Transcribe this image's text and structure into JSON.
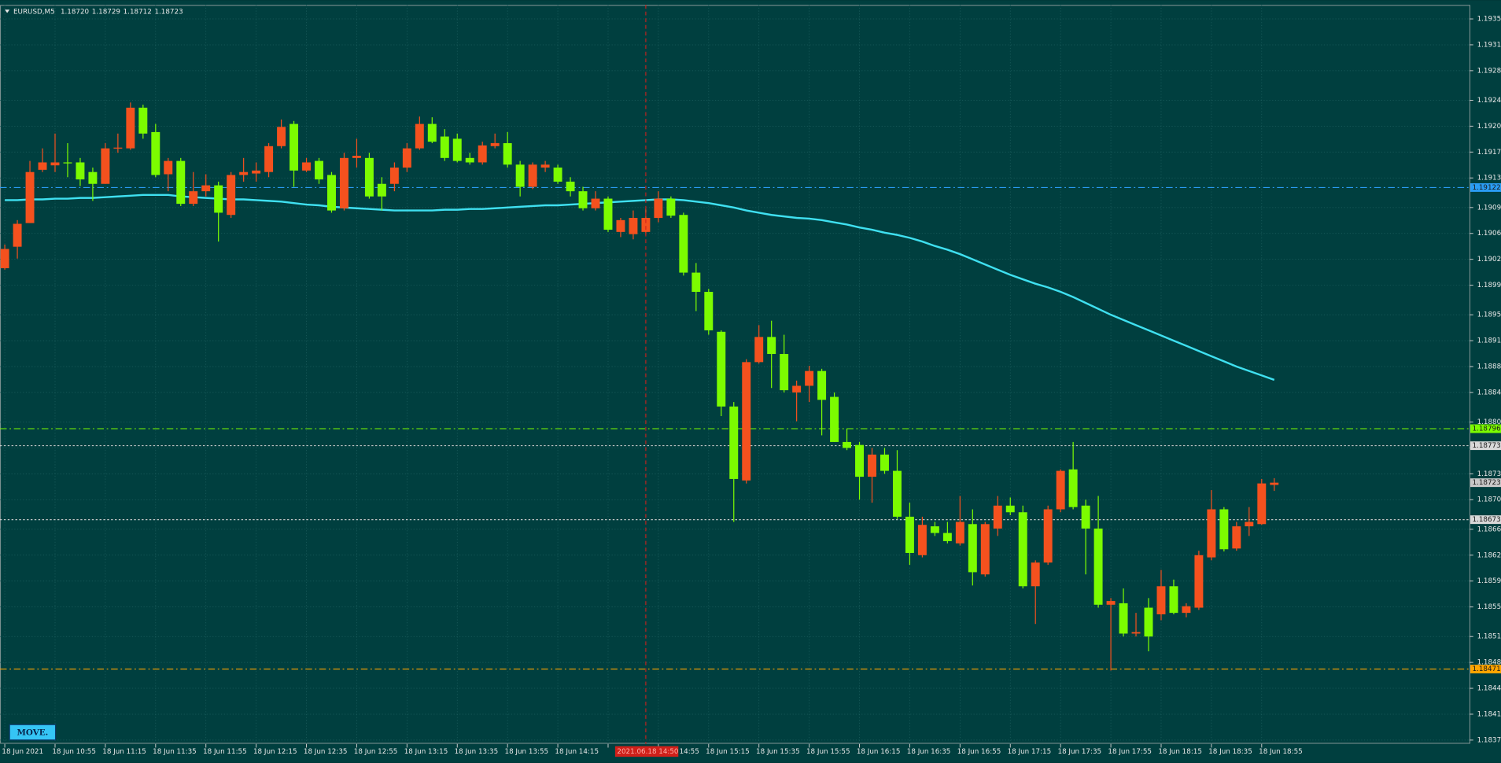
{
  "chart_data": {
    "type": "candlestick",
    "symbol": "EURUSD,M5",
    "last_labels": [
      "1.18720",
      "1.18729",
      "1.18712",
      "1.18723"
    ],
    "crosshair": "2021.06.18 14:50",
    "button": "MOVE.",
    "up_color": "#f4511e",
    "down_color": "#7cfc00",
    "grid": true,
    "ylim": [
      1.1837,
      1.19369
    ],
    "yticks": [
      {
        "value": 1.1935,
        "label": "1.19350"
      },
      1.19315,
      {
        "value": 1.1928,
        "label": "1.19280"
      },
      {
        "value": 1.1924,
        "label": "1.19240"
      },
      1.19205,
      {
        "value": 1.1917,
        "label": "1.19170"
      },
      1.19135,
      1.19095,
      {
        "value": 1.1906,
        "label": "1.19060"
      },
      1.19025,
      {
        "value": 1.1899,
        "label": "1.18990"
      },
      {
        "value": 1.1895,
        "label": "1.18950"
      },
      1.18915,
      {
        "value": 1.1888,
        "label": "1.18880"
      },
      1.18845,
      1.18805,
      {
        "value": 1.1877,
        "label": "1.18770"
      },
      1.18735,
      {
        "value": 1.187,
        "label": "1.18700"
      },
      {
        "value": 1.1866,
        "label": "1.18660"
      },
      1.18625,
      {
        "value": 1.1859,
        "label": "1.18590"
      },
      1.18555,
      1.18515,
      {
        "value": 1.1848,
        "label": "1.18480"
      },
      1.18445,
      {
        "value": 1.1841,
        "label": "1.18410"
      },
      1.18375
    ],
    "hlines": [
      {
        "value": 1.19122,
        "color": "#2a9df4",
        "style": "dashdot"
      },
      {
        "value": 1.18796,
        "color": "#7cfc00",
        "style": "dashdot"
      },
      {
        "value": 1.18773,
        "color": "#d8d8d8",
        "style": "dotted"
      },
      {
        "value": 1.18673,
        "color": "#d8d8d8",
        "style": "dotted"
      },
      {
        "value": 1.18471,
        "color": "#ffa500",
        "style": "dashdot"
      }
    ],
    "ma_color": "#3fe0f0",
    "x": [
      "18 Jun 2021",
      null,
      null,
      null,
      "18 Jun 10:55",
      null,
      null,
      null,
      "18 Jun 11:15",
      null,
      null,
      null,
      "18 Jun 11:35",
      null,
      null,
      null,
      "18 Jun 11:55",
      null,
      null,
      null,
      "18 Jun 12:15",
      null,
      null,
      null,
      "18 Jun 12:35",
      null,
      null,
      null,
      "18 Jun 12:55",
      null,
      null,
      null,
      "18 Jun 13:15",
      null,
      null,
      null,
      "18 Jun 13:35",
      null,
      null,
      null,
      "18 Jun 13:55",
      null,
      null,
      null,
      "18 Jun 14:15",
      null,
      null,
      null,
      null,
      null,
      null,
      null,
      "18 Jun 14:55",
      null,
      null,
      null,
      "18 Jun 15:15",
      null,
      null,
      null,
      "18 Jun 15:35",
      null,
      null,
      null,
      "18 Jun 15:55",
      null,
      null,
      null,
      "18 Jun 16:15",
      null,
      null,
      null,
      "18 Jun 16:35",
      null,
      null,
      null,
      "18 Jun 16:55",
      null,
      null,
      null,
      "18 Jun 17:15",
      null,
      null,
      null,
      "18 Jun 17:35",
      null,
      null,
      null,
      "18 Jun 17:55",
      null,
      null,
      null,
      "18 Jun 18:15",
      null,
      null,
      null,
      "18 Jun 18:35",
      null,
      null,
      null,
      "18 Jun 18:55",
      null
    ],
    "open": [
      1.19013,
      1.19042,
      1.19074,
      1.19146,
      1.19152,
      1.19156,
      1.19156,
      1.19143,
      1.19127,
      1.19175,
      1.19175,
      1.1923,
      1.19197,
      1.1914,
      1.19158,
      1.191,
      1.19117,
      1.19125,
      1.19085,
      1.19139,
      1.19141,
      1.19143,
      1.19178,
      1.19208,
      1.19145,
      1.19158,
      1.19139,
      1.19094,
      1.19162,
      1.19162,
      1.19127,
      1.19127,
      1.19149,
      1.19175,
      1.19208,
      1.19191,
      1.19188,
      1.19162,
      1.19156,
      1.19178,
      1.19182,
      1.19153,
      1.19123,
      1.19149,
      1.19149,
      1.1913,
      1.19117,
      1.19094,
      1.19107,
      1.19062,
      1.19059,
      1.19062,
      1.19081,
      1.19107,
      1.19085,
      1.19007,
      1.18981,
      1.18927,
      1.18826,
      1.18726,
      1.18886,
      1.1892,
      1.18897,
      1.18845,
      1.18854,
      1.18874,
      1.18839,
      1.18778,
      1.18774,
      1.18731,
      1.18761,
      1.18739,
      1.18677,
      1.18625,
      1.18664,
      1.18655,
      1.18641,
      1.18667,
      1.18599,
      1.18661,
      1.18692,
      1.18683,
      1.18583,
      1.18615,
      1.18687,
      1.18741,
      1.18692,
      1.18661,
      1.18558,
      1.1856,
      1.18519,
      1.18554,
      1.18545,
      1.18583,
      1.18547,
      1.18554,
      1.18622,
      1.18687,
      1.18634,
      1.18664,
      1.18667,
      1.1872
    ],
    "high": [
      1.19045,
      1.19078,
      1.19158,
      1.19175,
      1.19195,
      1.19182,
      1.19162,
      1.19149,
      1.19182,
      1.19195,
      1.19237,
      1.19234,
      1.19208,
      1.19162,
      1.19162,
      1.19143,
      1.1914,
      1.1913,
      1.19143,
      1.19162,
      1.19156,
      1.19182,
      1.19214,
      1.19212,
      1.19162,
      1.19162,
      1.19143,
      1.19169,
      1.19188,
      1.19169,
      1.19136,
      1.19156,
      1.19182,
      1.19218,
      1.19217,
      1.19201,
      1.19195,
      1.19169,
      1.19184,
      1.19195,
      1.19197,
      1.19158,
      1.19156,
      1.19158,
      1.19153,
      1.19136,
      1.19123,
      1.19117,
      1.1911,
      1.19081,
      1.19091,
      1.19094,
      1.19117,
      1.1911,
      1.19088,
      1.1902,
      1.18985,
      1.18929,
      1.18832,
      1.1889,
      1.18936,
      1.18942,
      1.18923,
      1.18861,
      1.18881,
      1.18877,
      1.18845,
      1.18796,
      1.18778,
      1.1877,
      1.1877,
      1.18767,
      1.18696,
      1.18677,
      1.1867,
      1.1867,
      1.18705,
      1.18687,
      1.1867,
      1.18705,
      1.18703,
      1.18692,
      1.18618,
      1.18692,
      1.18741,
      1.18778,
      1.187,
      1.18705,
      1.18567,
      1.1858,
      1.18547,
      1.18567,
      1.18605,
      1.18592,
      1.1856,
      1.18631,
      1.18713,
      1.1869,
      1.1867,
      1.1869,
      1.18728,
      1.18729
    ],
    "low": [
      1.19011,
      1.19026,
      1.19074,
      1.19143,
      1.19143,
      1.19136,
      1.19124,
      1.19104,
      1.19127,
      1.19169,
      1.19173,
      1.19188,
      1.19136,
      1.19117,
      1.19097,
      1.19097,
      1.1911,
      1.19049,
      1.19081,
      1.1913,
      1.1913,
      1.19136,
      1.19175,
      1.19123,
      1.19143,
      1.19127,
      1.19088,
      1.19091,
      1.19149,
      1.19107,
      1.19091,
      1.19117,
      1.19143,
      1.19173,
      1.19182,
      1.19158,
      1.19156,
      1.19153,
      1.19153,
      1.19175,
      1.19149,
      1.1911,
      1.1912,
      1.19143,
      1.19127,
      1.1911,
      1.19091,
      1.19091,
      1.19062,
      1.19055,
      1.19052,
      1.19058,
      1.19075,
      1.19081,
      1.19003,
      1.18955,
      1.18923,
      1.18813,
      1.1867,
      1.18722,
      1.18884,
      1.18851,
      1.18845,
      1.18806,
      1.18832,
      1.18787,
      1.18778,
      1.18767,
      1.187,
      1.18696,
      1.18735,
      1.18674,
      1.18612,
      1.18622,
      1.18651,
      1.18641,
      1.18638,
      1.18584,
      1.18596,
      1.18651,
      1.18679,
      1.1858,
      1.18532,
      1.18612,
      1.18683,
      1.18687,
      1.18599,
      1.18554,
      1.18469,
      1.18515,
      1.18515,
      1.18495,
      1.18537,
      1.18545,
      1.18541,
      1.18551,
      1.18618,
      1.1863,
      1.18631,
      1.18651,
      1.18666,
      1.18712
    ],
    "close": [
      1.19039,
      1.19073,
      1.19143,
      1.19156,
      1.19156,
      1.19155,
      1.19133,
      1.19127,
      1.19175,
      1.19176,
      1.1923,
      1.19195,
      1.19139,
      1.19158,
      1.191,
      1.19117,
      1.19125,
      1.19088,
      1.19139,
      1.19143,
      1.19145,
      1.19178,
      1.19204,
      1.19145,
      1.19156,
      1.19133,
      1.19091,
      1.19162,
      1.19165,
      1.1911,
      1.1911,
      1.19149,
      1.19175,
      1.19208,
      1.19184,
      1.19162,
      1.19158,
      1.19156,
      1.19179,
      1.19182,
      1.19153,
      1.19123,
      1.19153,
      1.19153,
      1.1913,
      1.19117,
      1.19094,
      1.19107,
      1.19065,
      1.19078,
      1.19081,
      1.19081,
      1.19107,
      1.19084,
      1.19007,
      1.18981,
      1.18929,
      1.18826,
      1.18728,
      1.18886,
      1.1892,
      1.18897,
      1.18848,
      1.18854,
      1.18874,
      1.18835,
      1.18778,
      1.1877,
      1.18731,
      1.18761,
      1.18739,
      1.18677,
      1.18628,
      1.18666,
      1.18655,
      1.18644,
      1.1867,
      1.18602,
      1.18667,
      1.18692,
      1.18683,
      1.18583,
      1.18615,
      1.18687,
      1.18739,
      1.1869,
      1.18661,
      1.18558,
      1.18563,
      1.18519,
      1.18521,
      1.18515,
      1.18583,
      1.18547,
      1.18556,
      1.18625,
      1.18687,
      1.18633,
      1.18664,
      1.1867,
      1.18722,
      1.18723
    ],
    "ma": [
      1.19105,
      1.19105,
      1.19106,
      1.19106,
      1.19107,
      1.19107,
      1.19108,
      1.19108,
      1.19109,
      1.1911,
      1.19111,
      1.19112,
      1.19112,
      1.19112,
      1.1911,
      1.19109,
      1.19108,
      1.19107,
      1.19106,
      1.19106,
      1.19105,
      1.19104,
      1.19103,
      1.19101,
      1.19099,
      1.19098,
      1.19096,
      1.19095,
      1.19094,
      1.19093,
      1.19092,
      1.19091,
      1.19091,
      1.19091,
      1.19091,
      1.19092,
      1.19092,
      1.19093,
      1.19093,
      1.19094,
      1.19095,
      1.19096,
      1.19097,
      1.19098,
      1.19098,
      1.19099,
      1.191,
      1.19101,
      1.19102,
      1.19103,
      1.19104,
      1.19105,
      1.19106,
      1.19106,
      1.19105,
      1.19103,
      1.19101,
      1.19098,
      1.19095,
      1.19091,
      1.19088,
      1.19085,
      1.19083,
      1.19081,
      1.1908,
      1.19078,
      1.19075,
      1.19072,
      1.19068,
      1.19065,
      1.19061,
      1.19058,
      1.19054,
      1.19049,
      1.19043,
      1.19038,
      1.19032,
      1.19025,
      1.19018,
      1.19011,
      1.19004,
      1.18998,
      1.18992,
      1.18987,
      1.18981,
      1.18974,
      1.18966,
      1.18958,
      1.1895,
      1.18943,
      1.18936,
      1.18929,
      1.18922,
      1.18915,
      1.18908,
      1.18901,
      1.18894,
      1.18887,
      1.1888,
      1.18874,
      1.18868,
      1.18862
    ]
  }
}
